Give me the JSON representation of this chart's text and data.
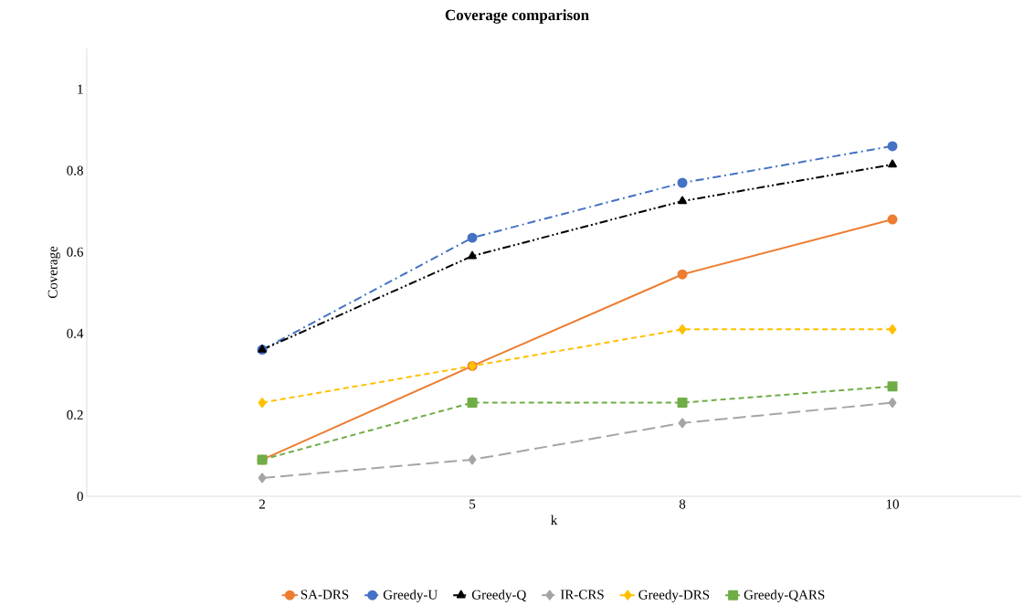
{
  "chart_data": {
    "type": "line",
    "title": "Coverage comparison",
    "xlabel": "k",
    "ylabel": "Coverage",
    "categories": [
      "2",
      "5",
      "8",
      "10"
    ],
    "series": [
      {
        "name": "SA-DRS",
        "color": "#ed7d31",
        "values": [
          0.09,
          0.32,
          0.545,
          0.68
        ],
        "marker": "circle",
        "line_style": "solid"
      },
      {
        "name": "Greedy-U",
        "color": "#4472c4",
        "values": [
          0.36,
          0.635,
          0.77,
          0.86
        ],
        "marker": "circle",
        "line_style": "dashdot"
      },
      {
        "name": "Greedy-Q",
        "color": "#000000",
        "values": [
          0.36,
          0.59,
          0.725,
          0.815
        ],
        "marker": "triangle",
        "line_style": "dashdotdot"
      },
      {
        "name": "IR-CRS",
        "color": "#a5a5a5",
        "values": [
          0.045,
          0.09,
          0.18,
          0.23
        ],
        "marker": "diamond",
        "line_style": "longdashed"
      },
      {
        "name": "Greedy-DRS",
        "color": "#ffc000",
        "values": [
          0.23,
          0.32,
          0.41,
          0.41
        ],
        "marker": "diamond",
        "line_style": "dashed"
      },
      {
        "name": "Greedy-QARS",
        "color": "#70ad47",
        "values": [
          0.09,
          0.23,
          0.23,
          0.27
        ],
        "marker": "square",
        "line_style": "dashed"
      }
    ],
    "ylim": [
      0,
      1.1
    ],
    "yticks": [
      0,
      0.2,
      0.4,
      0.6,
      0.8,
      1
    ],
    "grid": false,
    "legend": "bottom"
  }
}
